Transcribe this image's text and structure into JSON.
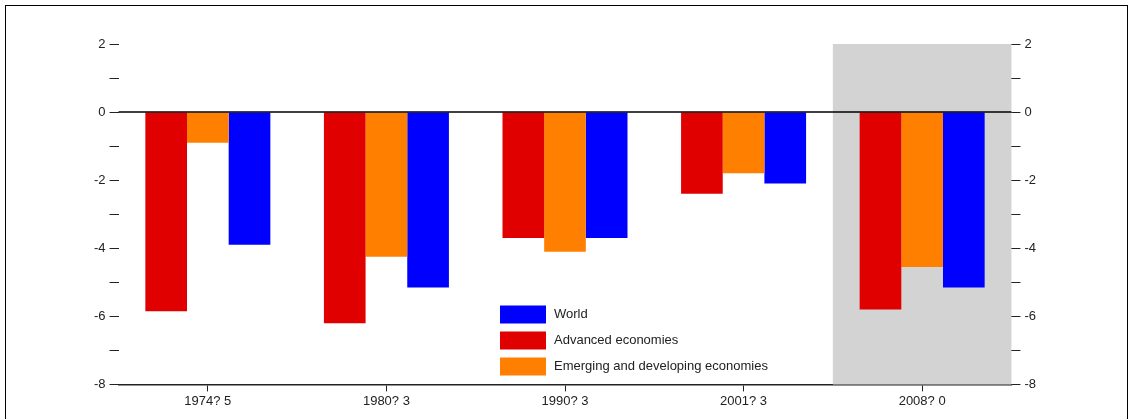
{
  "chart_data": {
    "type": "bar",
    "categories": [
      "1974? 5",
      "1980? 3",
      "1990? 3",
      "2001? 3",
      "2008? 0"
    ],
    "series": [
      {
        "name": "Advanced economies",
        "color": "#e00000",
        "values": [
          -5.85,
          -6.2,
          -3.7,
          -2.4,
          -5.8
        ]
      },
      {
        "name": "Emerging and developing economies",
        "color": "#ff8000",
        "values": [
          -0.9,
          -4.25,
          -4.1,
          -1.8,
          -4.55
        ]
      },
      {
        "name": "World",
        "color": "#0000ff",
        "values": [
          -3.9,
          -5.15,
          -3.7,
          -2.1,
          -5.15
        ]
      }
    ],
    "ylim": [
      -8,
      2
    ],
    "yticks": [
      -8,
      {
        "value": -7,
        "label": null
      },
      -6,
      {
        "value": -5,
        "label": null
      },
      -4,
      {
        "value": -3,
        "label": null
      },
      -2,
      {
        "value": -1,
        "label": null
      },
      0,
      {
        "value": 1,
        "label": null
      },
      2
    ],
    "y2lim": [
      -8,
      2
    ],
    "y2ticks": [
      -8,
      {
        "value": -7,
        "label": null
      },
      -6,
      {
        "value": -5,
        "label": null
      },
      -4,
      {
        "value": -3,
        "label": null
      },
      -2,
      {
        "value": -1,
        "label": null
      },
      0,
      {
        "value": 1,
        "label": null
      },
      2
    ],
    "bands": [
      {
        "axis": "x",
        "from": "2008? 0",
        "to": "2008? 0",
        "color": "#d3d3d3"
      }
    ],
    "ref_lines": [
      {
        "axis": "y",
        "value": 0
      }
    ],
    "grid": false,
    "legend": "bottom"
  }
}
